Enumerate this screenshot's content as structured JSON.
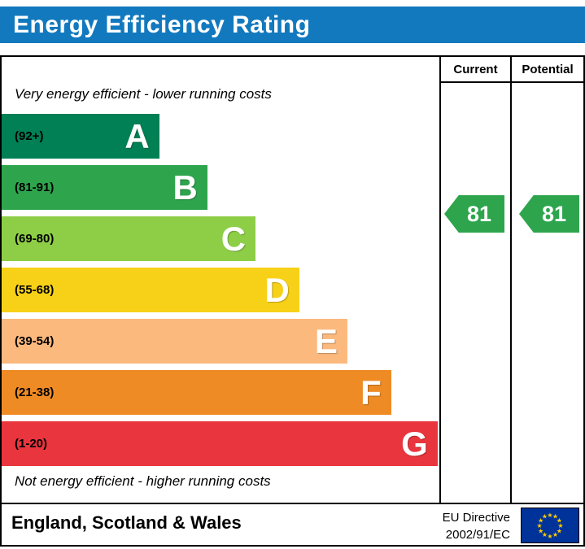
{
  "colors": {
    "header_bg": "#1279be",
    "border": "#000000"
  },
  "header": {
    "title": "Energy Efficiency Rating"
  },
  "table": {
    "col_current": "Current",
    "col_potential": "Potential",
    "top_note": "Very energy efficient - lower running costs",
    "bottom_note": "Not energy efficient - higher running costs"
  },
  "bands": [
    {
      "letter": "A",
      "range": "(92+)",
      "color": "#008054",
      "width_pct": 36
    },
    {
      "letter": "B",
      "range": "(81-91)",
      "color": "#2ea54d",
      "width_pct": 47
    },
    {
      "letter": "C",
      "range": "(69-80)",
      "color": "#8dce46",
      "width_pct": 58
    },
    {
      "letter": "D",
      "range": "(55-68)",
      "color": "#f7d117",
      "width_pct": 68
    },
    {
      "letter": "E",
      "range": "(39-54)",
      "color": "#fcb97e",
      "width_pct": 79
    },
    {
      "letter": "F",
      "range": "(21-38)",
      "color": "#ee8b24",
      "width_pct": 89
    },
    {
      "letter": "G",
      "range": "(1-20)",
      "color": "#e9353d",
      "width_pct": 99.6
    }
  ],
  "ratings": {
    "current": {
      "value": "81",
      "color": "#2ea54d"
    },
    "potential": {
      "value": "81",
      "color": "#2ea54d"
    }
  },
  "footer": {
    "region": "England, Scotland & Wales",
    "directive_line1": "EU Directive",
    "directive_line2": "2002/91/EC"
  },
  "chart_data": {
    "type": "bar",
    "title": "Energy Efficiency Rating",
    "categories": [
      "A",
      "B",
      "C",
      "D",
      "E",
      "F",
      "G"
    ],
    "band_ranges": [
      "92+",
      "81-91",
      "69-80",
      "55-68",
      "39-54",
      "21-38",
      "1-20"
    ],
    "band_colors": [
      "#008054",
      "#2ea54d",
      "#8dce46",
      "#f7d117",
      "#fcb97e",
      "#ee8b24",
      "#e9353d"
    ],
    "values": [
      36,
      47,
      58,
      68,
      79,
      89,
      100
    ],
    "series": [
      {
        "name": "Current",
        "value": 81,
        "band": "B"
      },
      {
        "name": "Potential",
        "value": 81,
        "band": "B"
      }
    ],
    "annotations": [
      "Very energy efficient - lower running costs",
      "Not energy efficient - higher running costs"
    ],
    "legend": [
      "Current",
      "Potential"
    ],
    "region_label": "England, Scotland & Wales",
    "directive": "EU Directive 2002/91/EC"
  }
}
